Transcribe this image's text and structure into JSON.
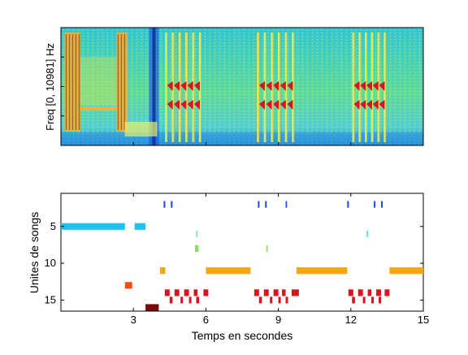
{
  "spectrogram": {
    "ylabel": "Freq [0, 10981] Hz",
    "xlim": [
      0,
      15
    ],
    "colormap": "jet",
    "description_values": {
      "song_bursts_start_sec": [
        4.35,
        8.15,
        12.1
      ],
      "song_bursts_end_sec": [
        5.75,
        9.6,
        13.4
      ],
      "early_noise_blocks_sec": [
        [
          0.15,
          0.8
        ],
        [
          2.3,
          2.75
        ]
      ],
      "vertical_broadband_sec": 3.85
    }
  },
  "chart_data": {
    "type": "scatter",
    "title": "",
    "xlabel": "Temps en secondes",
    "ylabel": "Unites de songs",
    "xlim": [
      0,
      15
    ],
    "ylim": [
      16.5,
      0.5
    ],
    "x_ticks": [
      3,
      6,
      9,
      12,
      15
    ],
    "x_tick_labels": [
      "3",
      "6",
      "9",
      "12",
      "15"
    ],
    "y_ticks": [
      5,
      10,
      15
    ],
    "y_tick_labels": [
      "5",
      "10",
      "15"
    ],
    "grid": false,
    "legend": "none",
    "units": [
      {
        "unit": 2,
        "color": "#1f4fd6",
        "segments": [
          [
            4.25,
            4.32
          ],
          [
            4.55,
            4.62
          ],
          [
            8.15,
            8.22
          ],
          [
            8.45,
            8.52
          ],
          [
            9.3,
            9.36
          ],
          [
            11.85,
            11.92
          ],
          [
            12.95,
            13.02
          ],
          [
            13.25,
            13.32
          ]
        ]
      },
      {
        "unit": 5,
        "color": "#1cc3ec",
        "segments": [
          [
            0.0,
            2.65
          ],
          [
            3.05,
            3.5
          ]
        ]
      },
      {
        "unit": 6,
        "color": "#6fe0d8",
        "segments": [
          [
            5.6,
            5.65
          ],
          [
            12.65,
            12.72
          ]
        ]
      },
      {
        "unit": 8,
        "color": "#8fdc6a",
        "segments": [
          [
            5.55,
            5.7
          ],
          [
            8.5,
            8.56
          ]
        ]
      },
      {
        "unit": 11,
        "color": "#f5a611",
        "segments": [
          [
            4.1,
            4.32
          ],
          [
            6.0,
            7.85
          ],
          [
            9.75,
            11.85
          ],
          [
            13.6,
            15.0
          ]
        ]
      },
      {
        "unit": 13,
        "color": "#ff4a14",
        "segments": [
          [
            2.65,
            2.95
          ]
        ]
      },
      {
        "unit": 14,
        "color": "#d9141e",
        "segments": [
          [
            4.3,
            4.5
          ],
          [
            4.7,
            4.9
          ],
          [
            5.1,
            5.3
          ],
          [
            5.5,
            5.65
          ],
          [
            5.9,
            6.1
          ],
          [
            8.0,
            8.2
          ],
          [
            8.4,
            8.6
          ],
          [
            8.8,
            9.0
          ],
          [
            9.15,
            9.3
          ],
          [
            9.55,
            9.85
          ],
          [
            11.9,
            12.1
          ],
          [
            12.3,
            12.5
          ],
          [
            12.7,
            12.85
          ],
          [
            13.05,
            13.25
          ],
          [
            13.4,
            13.6
          ]
        ]
      },
      {
        "unit": 15,
        "color": "#d9141e",
        "segments": [
          [
            4.5,
            4.62
          ],
          [
            4.95,
            5.05
          ],
          [
            5.3,
            5.4
          ],
          [
            5.6,
            5.72
          ],
          [
            8.2,
            8.32
          ],
          [
            8.65,
            8.75
          ],
          [
            9.0,
            9.1
          ],
          [
            9.3,
            9.4
          ],
          [
            12.05,
            12.17
          ],
          [
            12.5,
            12.6
          ],
          [
            12.85,
            12.95
          ],
          [
            13.15,
            13.25
          ]
        ]
      },
      {
        "unit": 16,
        "color": "#7a0a0a",
        "segments": [
          [
            3.5,
            4.05
          ]
        ]
      }
    ]
  }
}
